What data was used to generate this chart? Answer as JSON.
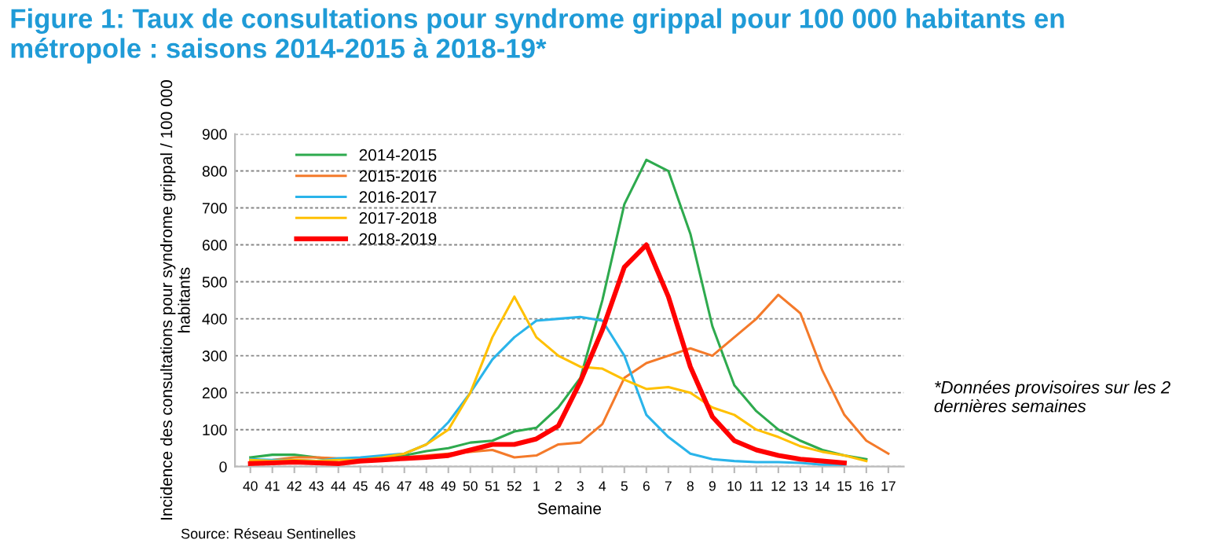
{
  "chart_data": {
    "type": "line",
    "title": "Figure 1: Taux de consultations pour syndrome grippal pour 100 000 habitants en métropole : saisons 2014-2015 à 2018-19*",
    "xlabel": "Semaine",
    "ylabel": "Incidence des consultations pour syndrome grippal / 100 000 habitants",
    "categories": [
      "40",
      "41",
      "42",
      "43",
      "44",
      "45",
      "46",
      "47",
      "48",
      "49",
      "50",
      "51",
      "52",
      "1",
      "2",
      "3",
      "4",
      "5",
      "6",
      "7",
      "8",
      "9",
      "10",
      "11",
      "12",
      "13",
      "14",
      "15",
      "16",
      "17"
    ],
    "series": [
      {
        "name": "2014-2015",
        "color": "#2eaa4e",
        "values": [
          25,
          32,
          32,
          25,
          20,
          22,
          25,
          30,
          42,
          50,
          65,
          70,
          95,
          105,
          160,
          240,
          450,
          710,
          830,
          800,
          630,
          380,
          220,
          150,
          100,
          70,
          45,
          30,
          20,
          null
        ]
      },
      {
        "name": "2015-2016",
        "color": "#f47a2a",
        "values": [
          15,
          18,
          25,
          25,
          22,
          20,
          20,
          25,
          30,
          35,
          40,
          45,
          25,
          30,
          60,
          65,
          115,
          240,
          280,
          300,
          320,
          300,
          350,
          400,
          465,
          415,
          260,
          140,
          70,
          35
        ]
      },
      {
        "name": "2016-2017",
        "color": "#2ab4ea",
        "values": [
          20,
          18,
          18,
          15,
          22,
          25,
          30,
          35,
          60,
          120,
          200,
          290,
          350,
          395,
          400,
          405,
          395,
          300,
          140,
          80,
          35,
          20,
          15,
          12,
          12,
          10,
          5,
          5,
          null,
          null
        ]
      },
      {
        "name": "2017-2018",
        "color": "#ffc000",
        "values": [
          18,
          15,
          18,
          15,
          18,
          18,
          25,
          35,
          60,
          100,
          200,
          350,
          460,
          350,
          300,
          270,
          265,
          235,
          210,
          215,
          200,
          160,
          140,
          100,
          80,
          55,
          40,
          30,
          15,
          null
        ]
      },
      {
        "name": "2018-2019",
        "color": "#ff0000",
        "values": [
          8,
          10,
          12,
          10,
          8,
          15,
          18,
          22,
          25,
          30,
          45,
          60,
          60,
          75,
          110,
          230,
          370,
          540,
          600,
          460,
          270,
          135,
          70,
          45,
          30,
          20,
          15,
          10,
          null,
          null
        ]
      }
    ],
    "ylim": [
      0,
      900
    ],
    "yticks": [
      0,
      100,
      200,
      300,
      400,
      500,
      600,
      700,
      800,
      900
    ],
    "grid": "y",
    "legend": "top left",
    "marker": "none",
    "line_style": "solid",
    "annotations": [
      "*Données provisoires sur les 2 dernières semaines",
      "Source: Réseau Sentinelles"
    ]
  }
}
